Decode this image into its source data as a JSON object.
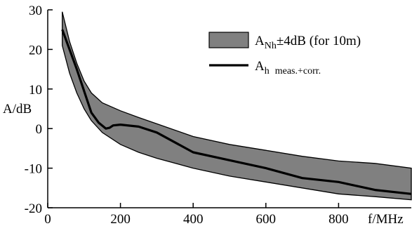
{
  "chart_data": {
    "type": "area",
    "x_range": [
      0,
      1000
    ],
    "ylim": [
      -20,
      30
    ],
    "xlabel": "f/MHz",
    "ylabel": "A/dB",
    "x_ticks": [
      0,
      200,
      400,
      600,
      800
    ],
    "y_ticks": [
      -20,
      -10,
      0,
      10,
      20,
      30
    ],
    "grid": false,
    "legend_position": "top-right",
    "band": {
      "name_main": "A",
      "name_sub": "Nh",
      "name_suffix": "±4dB (for 10m)",
      "color": "#808080",
      "x": [
        40,
        60,
        80,
        100,
        120,
        150,
        200,
        250,
        300,
        400,
        500,
        600,
        700,
        800,
        900,
        1000
      ],
      "upper": [
        29.5,
        22,
        16.5,
        12,
        9,
        6.5,
        4.5,
        2.8,
        1.2,
        -2,
        -4,
        -5.5,
        -7,
        -8.2,
        -8.8,
        -10
      ],
      "lower": [
        21,
        14,
        9,
        5,
        2,
        -1,
        -4,
        -6,
        -7.5,
        -10,
        -12,
        -13.5,
        -15,
        -16.5,
        -17.2,
        -18
      ]
    },
    "series": [
      {
        "name_main": "A",
        "name_sub": "h",
        "name_suffix": "meas.+corr.",
        "color": "#000000",
        "x": [
          40,
          60,
          80,
          100,
          120,
          140,
          160,
          170,
          180,
          200,
          250,
          300,
          400,
          500,
          600,
          700,
          800,
          900,
          1000
        ],
        "y": [
          25,
          20,
          15,
          9.5,
          4,
          1.5,
          0,
          0.2,
          0.8,
          1,
          0.5,
          -1,
          -6,
          -8,
          -10,
          -12.5,
          -13.5,
          -15.5,
          -16.5
        ]
      }
    ]
  }
}
